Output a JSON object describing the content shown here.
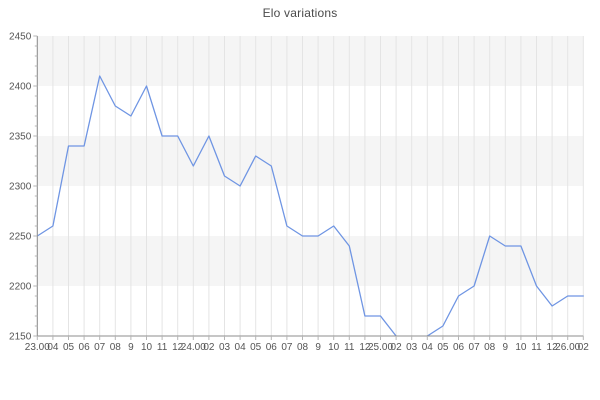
{
  "title": "Elo variations",
  "chart_data": {
    "type": "line",
    "title": "Elo variations",
    "x_categories": [
      "23.00",
      "04",
      "05",
      "06",
      "07",
      "08",
      "9",
      "10",
      "11",
      "12",
      "24.00",
      "02",
      "03",
      "04",
      "05",
      "06",
      "07",
      "08",
      "9",
      "10",
      "11",
      "12",
      "25.00",
      "02",
      "03",
      "04",
      "05",
      "06",
      "07",
      "08",
      "9",
      "10",
      "11",
      "12",
      "26.00",
      "02"
    ],
    "series": [
      {
        "name": "Elo",
        "values": [
          2250,
          2260,
          2340,
          2340,
          2410,
          2380,
          2370,
          2400,
          2350,
          2350,
          2320,
          2350,
          2310,
          2300,
          2330,
          2320,
          2260,
          2250,
          2250,
          2260,
          2240,
          2170,
          2170,
          2150,
          2140,
          2150,
          2160,
          2190,
          2200,
          2250,
          2240,
          2240,
          2200,
          2180,
          2190,
          2190
        ]
      }
    ],
    "xlabel": "",
    "ylabel": "",
    "ylim": [
      2150,
      2450
    ],
    "y_ticks": [
      2450,
      2400,
      2350,
      2300,
      2250,
      2200,
      2150
    ],
    "y_minor_step": 10,
    "grid": "vertical-lines-with-alternating-horizontal-bands",
    "legend": "none",
    "colors": {
      "line": "#6f95e3",
      "band": "#f5f5f5",
      "grid": "#e4e4e4",
      "axis": "#8c8c8c",
      "tick": "#b5b5b5",
      "label_text": "#555555",
      "title_text": "#4a4a4a"
    }
  }
}
